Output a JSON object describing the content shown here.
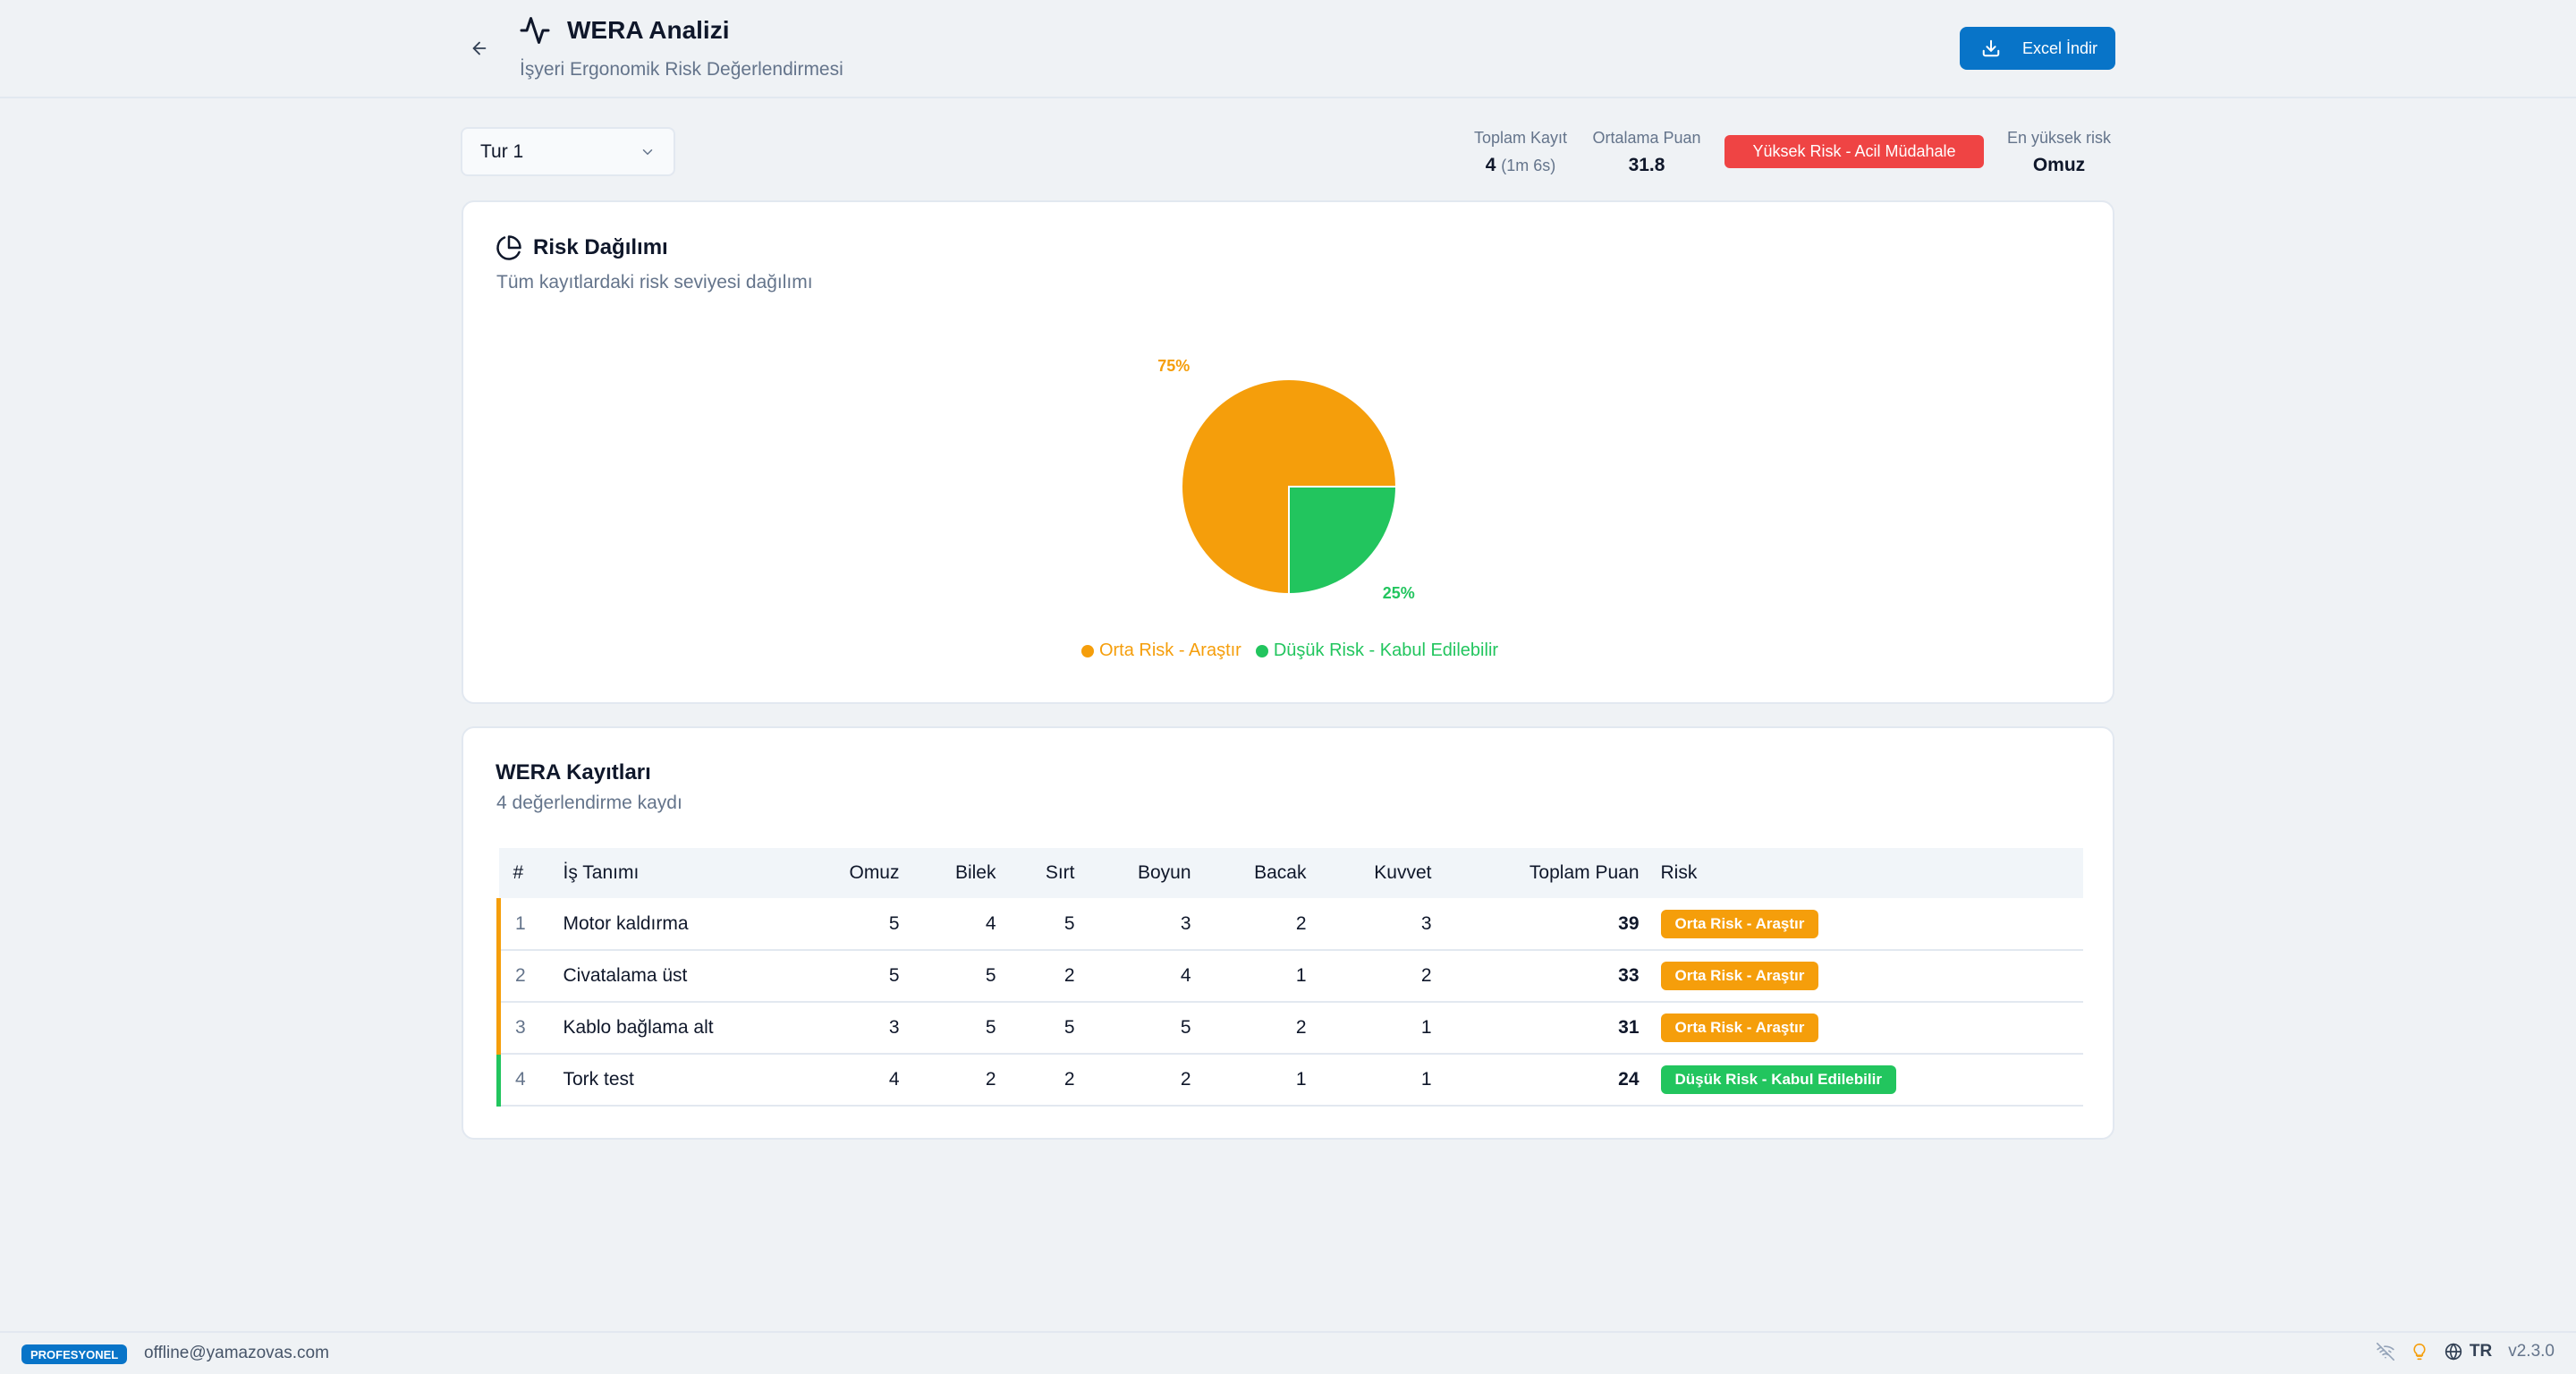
{
  "header": {
    "title": "WERA Analizi",
    "subtitle": "İşyeri Ergonomik Risk Değerlendirmesi",
    "excel_label": "Excel İndir"
  },
  "filter": {
    "selected": "Tur 1"
  },
  "stats": {
    "total_label": "Toplam Kayıt",
    "total_value": "4",
    "total_detail": "(1m 6s)",
    "avg_label": "Ortalama Puan",
    "avg_value": "31.8",
    "overall_risk": "Yüksek Risk - Acil Müdahale",
    "highest_label": "En yüksek risk",
    "highest_value": "Omuz"
  },
  "risk_card": {
    "title": "Risk Dağılımı",
    "subtitle": "Tüm kayıtlardaki risk seviyesi dağılımı"
  },
  "chart_data": {
    "type": "pie",
    "slices": [
      {
        "label": "Orta Risk - Araştır",
        "value": 75,
        "display": "75%",
        "color": "#f59e0b"
      },
      {
        "label": "Düşük Risk - Kabul Edilebilir",
        "value": 25,
        "display": "25%",
        "color": "#22c55e"
      }
    ]
  },
  "records": {
    "title": "WERA Kayıtları",
    "subtitle": "4 değerlendirme kaydı",
    "columns": [
      "#",
      "İş Tanımı",
      "Omuz",
      "Bilek",
      "Sırt",
      "Boyun",
      "Bacak",
      "Kuvvet",
      "Toplam Puan",
      "Risk"
    ],
    "rows": [
      {
        "no": "1",
        "task": "Motor kaldırma",
        "omuz": "5",
        "bilek": "4",
        "sirt": "5",
        "boyun": "3",
        "bacak": "2",
        "kuvvet": "3",
        "total": "39",
        "risk": "Orta Risk - Araştır",
        "color": "#f59e0b"
      },
      {
        "no": "2",
        "task": "Civatalama üst",
        "omuz": "5",
        "bilek": "5",
        "sirt": "2",
        "boyun": "4",
        "bacak": "1",
        "kuvvet": "2",
        "total": "33",
        "risk": "Orta Risk - Araştır",
        "color": "#f59e0b"
      },
      {
        "no": "3",
        "task": "Kablo bağlama alt",
        "omuz": "3",
        "bilek": "5",
        "sirt": "5",
        "boyun": "5",
        "bacak": "2",
        "kuvvet": "1",
        "total": "31",
        "risk": "Orta Risk - Araştır",
        "color": "#f59e0b"
      },
      {
        "no": "4",
        "task": "Tork test",
        "omuz": "4",
        "bilek": "2",
        "sirt": "2",
        "boyun": "2",
        "bacak": "1",
        "kuvvet": "1",
        "total": "24",
        "risk": "Düşük Risk - Kabul Edilebilir",
        "color": "#22c55e"
      }
    ]
  },
  "footer": {
    "plan": "PROFESYONEL",
    "email": "offline@yamazovas.com",
    "lang": "TR",
    "version": "v2.3.0"
  },
  "icons": [
    "arrow-left-icon",
    "activity-icon",
    "download-icon",
    "chevron-down-icon",
    "pie-chart-icon",
    "wifi-off-icon",
    "lightbulb-icon",
    "globe-icon"
  ]
}
